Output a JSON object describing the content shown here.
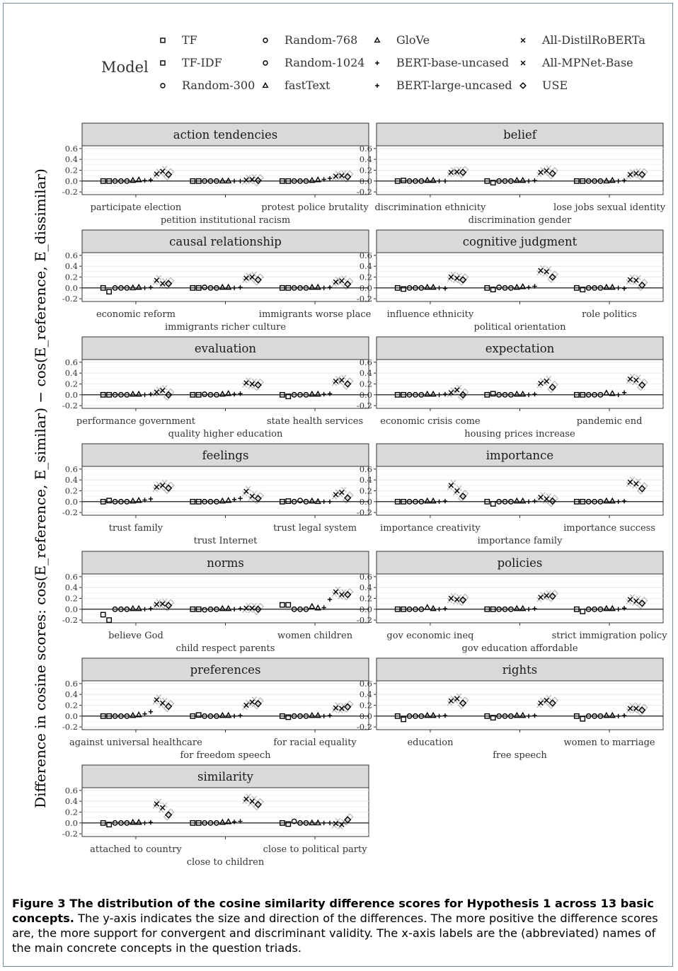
{
  "legend": {
    "title": "Model",
    "items": [
      {
        "label": "TF",
        "shape": "square"
      },
      {
        "label": "TF-IDF",
        "shape": "square"
      },
      {
        "label": "Random-300",
        "shape": "circle"
      },
      {
        "label": "Random-768",
        "shape": "circle"
      },
      {
        "label": "Random-1024",
        "shape": "circle"
      },
      {
        "label": "fastText",
        "shape": "triangle"
      },
      {
        "label": "GloVe",
        "shape": "triangle"
      },
      {
        "label": "BERT-base-uncased",
        "shape": "plus"
      },
      {
        "label": "BERT-large-uncased",
        "shape": "plus"
      },
      {
        "label": "All-DistilRoBERTa",
        "shape": "cross"
      },
      {
        "label": "All-MPNet-Base",
        "shape": "cross"
      },
      {
        "label": "USE",
        "shape": "diamond"
      }
    ]
  },
  "caption": {
    "bold": "Figure 3 The distribution of the cosine similarity difference scores for Hypothesis 1 across 13 basic concepts.",
    "text": " The y-axis indicates the size and direction of the differences. The more positive the difference scores are, the more support for convergent and discriminant validity. The x-axis labels are the (abbreviated) names of the main concrete concepts in the question triads."
  },
  "chart_data": {
    "type": "scatter",
    "ylabel": "Difference in cosine scores: cos(E_reference, E_similar) − cos(E_reference, E_dissimilar)",
    "ylim": [
      -0.25,
      0.65
    ],
    "yticks": [
      "0.6",
      "0.4",
      "0.2",
      "0.0",
      "-0.2"
    ],
    "grid": true,
    "series": [
      "TF",
      "TF-IDF",
      "Random-300",
      "Random-768",
      "Random-1024",
      "fastText",
      "GloVe",
      "BERT-base-uncased",
      "BERT-large-uncased",
      "All-DistilRoBERTa",
      "All-MPNet-Base",
      "USE"
    ],
    "panels": [
      {
        "title": "action tendencies",
        "groups": [
          {
            "label": "participate election",
            "values": [
              0.0,
              0.0,
              0.0,
              0.0,
              0.0,
              0.01,
              0.02,
              0.01,
              0.02,
              0.13,
              0.18,
              0.12
            ]
          },
          {
            "label": "petition institutional racism",
            "values": [
              0.0,
              0.0,
              0.0,
              0.0,
              0.0,
              0.0,
              0.0,
              0.0,
              0.0,
              0.02,
              0.03,
              0.01
            ]
          },
          {
            "label": "protest police brutality",
            "values": [
              0.0,
              0.0,
              0.0,
              0.0,
              0.0,
              0.01,
              0.02,
              0.03,
              0.05,
              0.09,
              0.1,
              0.08
            ]
          }
        ]
      },
      {
        "title": "belief",
        "groups": [
          {
            "label": "discrimination ethnicity",
            "values": [
              0.0,
              0.01,
              0.0,
              0.0,
              0.0,
              0.01,
              0.01,
              0.0,
              0.0,
              0.16,
              0.17,
              0.16
            ]
          },
          {
            "label": "discrimination gender",
            "values": [
              0.0,
              -0.03,
              0.0,
              0.0,
              0.0,
              0.01,
              0.01,
              0.0,
              0.01,
              0.16,
              0.19,
              0.14
            ]
          },
          {
            "label": "lose jobs sexual identity",
            "values": [
              0.0,
              0.0,
              0.0,
              0.0,
              0.0,
              0.0,
              0.01,
              0.0,
              0.01,
              0.12,
              0.14,
              0.12
            ]
          }
        ]
      },
      {
        "title": "causal relationship",
        "groups": [
          {
            "label": "economic reform",
            "values": [
              0.0,
              -0.07,
              0.0,
              0.0,
              0.0,
              0.0,
              0.01,
              0.0,
              0.01,
              0.14,
              0.08,
              0.08
            ]
          },
          {
            "label": "immigrants richer culture",
            "values": [
              0.0,
              0.0,
              0.01,
              0.0,
              0.0,
              0.01,
              0.01,
              0.0,
              0.01,
              0.18,
              0.2,
              0.15
            ]
          },
          {
            "label": "immigrants worse place",
            "values": [
              0.0,
              0.0,
              0.0,
              0.0,
              0.0,
              0.01,
              0.01,
              0.0,
              0.01,
              0.11,
              0.13,
              0.07
            ]
          }
        ]
      },
      {
        "title": "cognitive judgment",
        "groups": [
          {
            "label": "influence ethnicity",
            "values": [
              0.0,
              -0.02,
              0.0,
              0.0,
              0.0,
              0.01,
              0.01,
              0.0,
              -0.01,
              0.2,
              0.18,
              0.15
            ]
          },
          {
            "label": "political orientation",
            "values": [
              0.0,
              -0.03,
              0.01,
              0.0,
              0.0,
              0.01,
              0.02,
              0.01,
              0.03,
              0.32,
              0.3,
              0.2
            ]
          },
          {
            "label": "role politics",
            "values": [
              0.0,
              -0.03,
              0.0,
              0.0,
              0.0,
              0.01,
              0.01,
              0.0,
              -0.01,
              0.15,
              0.14,
              0.05
            ]
          }
        ]
      },
      {
        "title": "evaluation",
        "groups": [
          {
            "label": "performance government",
            "values": [
              0.0,
              0.0,
              0.0,
              0.0,
              0.0,
              0.01,
              0.01,
              0.0,
              0.01,
              0.05,
              0.08,
              0.0
            ]
          },
          {
            "label": "quality higher education",
            "values": [
              0.0,
              0.0,
              0.01,
              0.0,
              0.0,
              0.01,
              0.02,
              0.01,
              0.02,
              0.22,
              0.2,
              0.18
            ]
          },
          {
            "label": "state health services",
            "values": [
              0.0,
              -0.03,
              0.0,
              0.0,
              0.0,
              0.01,
              0.01,
              0.01,
              0.02,
              0.25,
              0.27,
              0.2
            ]
          }
        ]
      },
      {
        "title": "expectation",
        "groups": [
          {
            "label": "economic crisis come",
            "values": [
              0.0,
              0.0,
              0.0,
              0.0,
              0.0,
              0.01,
              0.01,
              0.0,
              0.01,
              0.04,
              0.09,
              0.0
            ]
          },
          {
            "label": "housing prices increase",
            "values": [
              0.0,
              0.02,
              0.0,
              0.0,
              0.0,
              0.01,
              0.01,
              0.0,
              0.01,
              0.21,
              0.25,
              0.14
            ]
          },
          {
            "label": "pandemic end",
            "values": [
              0.0,
              0.0,
              0.0,
              0.0,
              0.0,
              0.03,
              0.02,
              0.0,
              0.04,
              0.29,
              0.27,
              0.18
            ]
          }
        ]
      },
      {
        "title": "feelings",
        "groups": [
          {
            "label": "trust family",
            "values": [
              0.0,
              0.02,
              0.0,
              0.0,
              0.0,
              0.01,
              0.02,
              0.03,
              0.05,
              0.27,
              0.3,
              0.25
            ]
          },
          {
            "label": "trust Internet",
            "values": [
              0.0,
              0.0,
              0.0,
              0.0,
              0.0,
              0.01,
              0.02,
              0.04,
              0.06,
              0.19,
              0.1,
              0.06
            ]
          },
          {
            "label": "trust legal system",
            "values": [
              0.0,
              0.01,
              0.0,
              0.02,
              0.0,
              0.01,
              0.0,
              0.0,
              0.0,
              0.13,
              0.17,
              0.07
            ]
          }
        ]
      },
      {
        "title": "importance",
        "groups": [
          {
            "label": "importance creativity",
            "values": [
              0.0,
              0.0,
              0.0,
              0.0,
              0.0,
              0.01,
              0.01,
              0.0,
              0.01,
              0.3,
              0.2,
              0.1
            ]
          },
          {
            "label": "importance family",
            "values": [
              0.0,
              -0.04,
              0.0,
              0.0,
              0.0,
              0.01,
              0.01,
              0.0,
              0.01,
              0.08,
              0.05,
              0.01
            ]
          },
          {
            "label": "importance success",
            "values": [
              0.0,
              0.0,
              0.0,
              0.0,
              0.0,
              0.01,
              0.01,
              0.0,
              0.01,
              0.36,
              0.33,
              0.24
            ]
          }
        ]
      },
      {
        "title": "norms",
        "groups": [
          {
            "label": "believe God",
            "values": [
              -0.1,
              -0.2,
              0.0,
              0.0,
              0.0,
              0.01,
              0.01,
              0.0,
              0.01,
              0.09,
              0.1,
              0.07
            ]
          },
          {
            "label": "child respect parents",
            "values": [
              0.0,
              0.0,
              -0.01,
              0.0,
              0.0,
              0.01,
              0.01,
              0.0,
              0.01,
              0.02,
              0.02,
              0.0
            ]
          },
          {
            "label": "women children",
            "values": [
              0.08,
              0.08,
              0.0,
              0.0,
              0.0,
              0.05,
              0.02,
              0.03,
              0.18,
              0.32,
              0.27,
              0.27
            ]
          }
        ]
      },
      {
        "title": "policies",
        "groups": [
          {
            "label": "gov economic ineq",
            "values": [
              0.0,
              0.0,
              0.0,
              0.0,
              0.0,
              0.03,
              0.01,
              0.0,
              0.01,
              0.2,
              0.18,
              0.17
            ]
          },
          {
            "label": "gov education affordable",
            "values": [
              0.0,
              0.0,
              0.0,
              0.0,
              0.0,
              0.01,
              0.01,
              0.0,
              0.01,
              0.22,
              0.25,
              0.24
            ]
          },
          {
            "label": "strict immigration policy",
            "values": [
              0.0,
              -0.04,
              0.0,
              0.0,
              0.0,
              0.01,
              0.01,
              0.0,
              0.02,
              0.18,
              0.15,
              0.11
            ]
          }
        ]
      },
      {
        "title": "preferences",
        "groups": [
          {
            "label": "against universal healthcare",
            "values": [
              0.0,
              0.0,
              0.0,
              0.0,
              0.0,
              0.01,
              0.02,
              0.04,
              0.08,
              0.3,
              0.24,
              0.18
            ]
          },
          {
            "label": "for freedom speech",
            "values": [
              0.0,
              0.02,
              0.0,
              0.0,
              0.0,
              0.01,
              0.01,
              0.0,
              0.01,
              0.2,
              0.26,
              0.23
            ]
          },
          {
            "label": "for racial equality",
            "values": [
              0.0,
              -0.02,
              0.0,
              0.0,
              0.0,
              0.01,
              0.01,
              0.0,
              0.01,
              0.15,
              0.14,
              0.17
            ]
          }
        ]
      },
      {
        "title": "rights",
        "groups": [
          {
            "label": "education",
            "values": [
              0.0,
              -0.06,
              0.0,
              0.0,
              0.0,
              0.01,
              0.01,
              0.0,
              0.01,
              0.28,
              0.32,
              0.24
            ]
          },
          {
            "label": "free speech",
            "values": [
              0.0,
              -0.03,
              0.0,
              0.0,
              0.0,
              0.01,
              0.01,
              0.0,
              0.01,
              0.24,
              0.29,
              0.24
            ]
          },
          {
            "label": "women to marriage",
            "values": [
              0.0,
              -0.05,
              0.0,
              0.0,
              0.0,
              0.01,
              0.01,
              0.0,
              0.01,
              0.14,
              0.14,
              0.11
            ]
          }
        ]
      },
      {
        "title": "similarity",
        "groups": [
          {
            "label": "attached to country",
            "values": [
              0.0,
              -0.03,
              0.0,
              0.0,
              0.0,
              0.01,
              0.01,
              0.0,
              0.01,
              0.35,
              0.28,
              0.15
            ]
          },
          {
            "label": "close to children",
            "values": [
              0.0,
              0.0,
              0.0,
              0.0,
              0.0,
              0.01,
              0.02,
              0.02,
              0.03,
              0.44,
              0.4,
              0.34
            ]
          },
          {
            "label": "close to political party",
            "values": [
              0.0,
              -0.02,
              0.03,
              0.0,
              0.0,
              0.0,
              0.0,
              0.0,
              0.0,
              -0.01,
              -0.03,
              0.06
            ]
          }
        ]
      }
    ]
  }
}
